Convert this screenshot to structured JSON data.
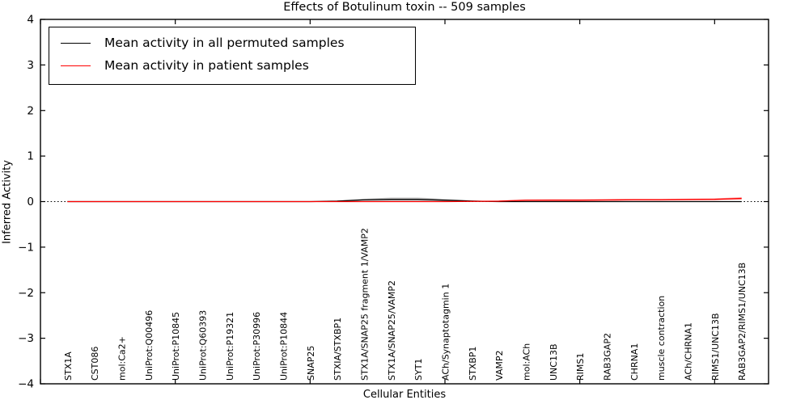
{
  "chart_data": {
    "type": "line",
    "title": "Effects of Botulinum toxin -- 509 samples",
    "xlabel": "Cellular Entities",
    "ylabel": "Inferred Activity",
    "ylim": [
      -4,
      4
    ],
    "xlim": [
      0,
      27
    ],
    "yticks": [
      4,
      3,
      2,
      1,
      0,
      -1,
      -2,
      -3,
      -4
    ],
    "ytick_labels": [
      "4",
      "3",
      "2",
      "1",
      "0",
      "−1",
      "−2",
      "−3",
      "−4"
    ],
    "x_axis_ticks_data": [
      0,
      5,
      10,
      15,
      20,
      25
    ],
    "grid": false,
    "legend_position": "upper left",
    "zero_line": {
      "value": 0,
      "style": "dotted",
      "color": "#000000"
    },
    "categories": [
      "STX1A",
      "CST086",
      "mol:Ca2+",
      "UniProt:Q00496",
      "UniProt:P10845",
      "UniProt:Q60393",
      "UniProt:P19321",
      "UniProt:P30996",
      "UniProt:P10844",
      "SNAP25",
      "STXIA/STXBP1",
      "STX1A/SNAP25 fragment 1/VAMP2",
      "STX1A/SNAP25/VAMP2",
      "SYT1",
      "ACh/Synaptotagmin 1",
      "STXBP1",
      "VAMP2",
      "mol:ACh",
      "UNC13B",
      "RIMS1",
      "RAB3GAP2",
      "CHRNA1",
      "muscle contraction",
      "ACh/CHRNA1",
      "RIMS1/UNC13B",
      "RAB3GAP2/RIMS1/UNC13B"
    ],
    "series": [
      {
        "name": "Mean activity in all permuted samples",
        "color": "#000000",
        "band_color": "rgba(128,128,128,0.40)",
        "values": [
          0,
          0,
          0,
          0,
          0,
          0,
          0,
          0,
          0,
          0,
          0.01,
          0.04,
          0.05,
          0.05,
          0.03,
          0.01,
          0,
          0,
          0,
          0,
          0,
          0,
          0,
          0,
          0,
          0
        ],
        "band_top": [
          0,
          0,
          0,
          0,
          0,
          0,
          0,
          0,
          0,
          0,
          0.02,
          0.06,
          0.09,
          0.09,
          0.06,
          0.03,
          0.01,
          0,
          0,
          0,
          0,
          0,
          0,
          0,
          0,
          0
        ],
        "band_bottom": [
          0,
          0,
          0,
          0,
          0,
          0,
          0,
          0,
          0,
          0,
          0,
          -0.01,
          -0.01,
          -0.01,
          -0.01,
          0,
          0,
          0,
          0,
          0,
          0,
          0,
          0,
          0,
          0,
          0
        ]
      },
      {
        "name": "Mean activity in patient samples",
        "color": "#ff0000",
        "band_color": "rgba(255,0,0,0.35)",
        "values": [
          0,
          0,
          0,
          0,
          0,
          0,
          0,
          0,
          0,
          0,
          0,
          0,
          0,
          0,
          0,
          0.005,
          0.01,
          0.03,
          0.03,
          0.03,
          0.035,
          0.04,
          0.04,
          0.045,
          0.05,
          0.07
        ],
        "band_top": [
          0,
          0,
          0,
          0,
          0,
          0,
          0,
          0,
          0,
          0,
          0,
          0,
          0,
          0,
          0,
          0.01,
          0.02,
          0.045,
          0.05,
          0.05,
          0.055,
          0.06,
          0.06,
          0.065,
          0.07,
          0.095
        ],
        "band_bottom": [
          0,
          0,
          0,
          0,
          0,
          0,
          0,
          0,
          0,
          0,
          0,
          0,
          0,
          0,
          0,
          0,
          0,
          0.015,
          0.015,
          0.015,
          0.02,
          0.025,
          0.025,
          0.03,
          0.03,
          0.045
        ]
      }
    ]
  }
}
